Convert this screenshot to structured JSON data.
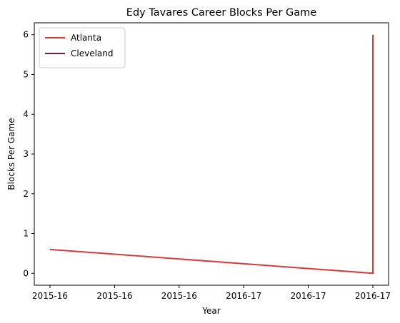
{
  "chart_data": {
    "type": "line",
    "title": "Edy Tavares Career Blocks Per Game",
    "xlabel": "Year",
    "ylabel": "Blocks Per Game",
    "x_tick_labels": [
      "2015-16",
      "2015-16",
      "2015-16",
      "2016-17",
      "2016-17",
      "2016-17"
    ],
    "y_ticks": [
      0,
      1,
      2,
      3,
      4,
      5,
      6
    ],
    "ylim": [
      -0.3,
      6.3
    ],
    "grid": false,
    "legend_position": "upper-left",
    "series": [
      {
        "name": "Atlanta",
        "color": "#d93b3b",
        "x": [
          "2015-16",
          "2016-17",
          "2016-17"
        ],
        "x_pos": [
          0,
          5,
          5
        ],
        "values": [
          0.6,
          0.0,
          6.0
        ]
      },
      {
        "name": "Cleveland",
        "color": "#6b1f3f",
        "x": [],
        "x_pos": [],
        "values": []
      }
    ]
  }
}
